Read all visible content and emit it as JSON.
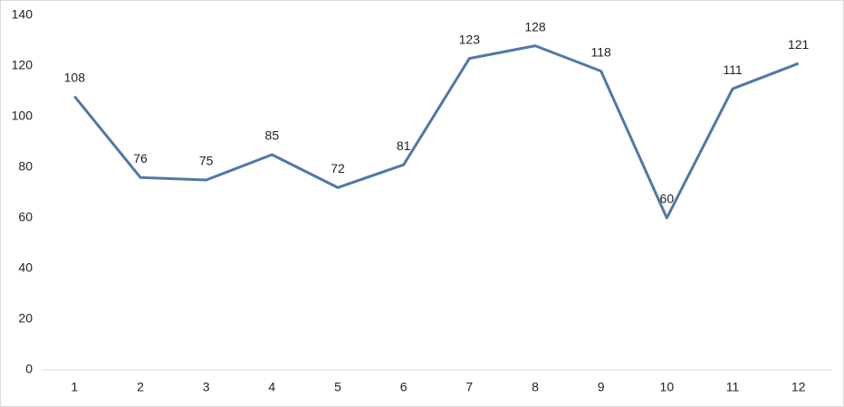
{
  "chart_data": {
    "type": "line",
    "categories": [
      "1",
      "2",
      "3",
      "4",
      "5",
      "6",
      "7",
      "8",
      "9",
      "10",
      "11",
      "12"
    ],
    "values": [
      108,
      76,
      75,
      85,
      72,
      81,
      123,
      128,
      118,
      60,
      111,
      121
    ],
    "color": "#5078a8",
    "ylim": [
      0,
      140
    ],
    "yticks": [
      0,
      20,
      40,
      60,
      80,
      100,
      120,
      140
    ],
    "grid": false
  }
}
